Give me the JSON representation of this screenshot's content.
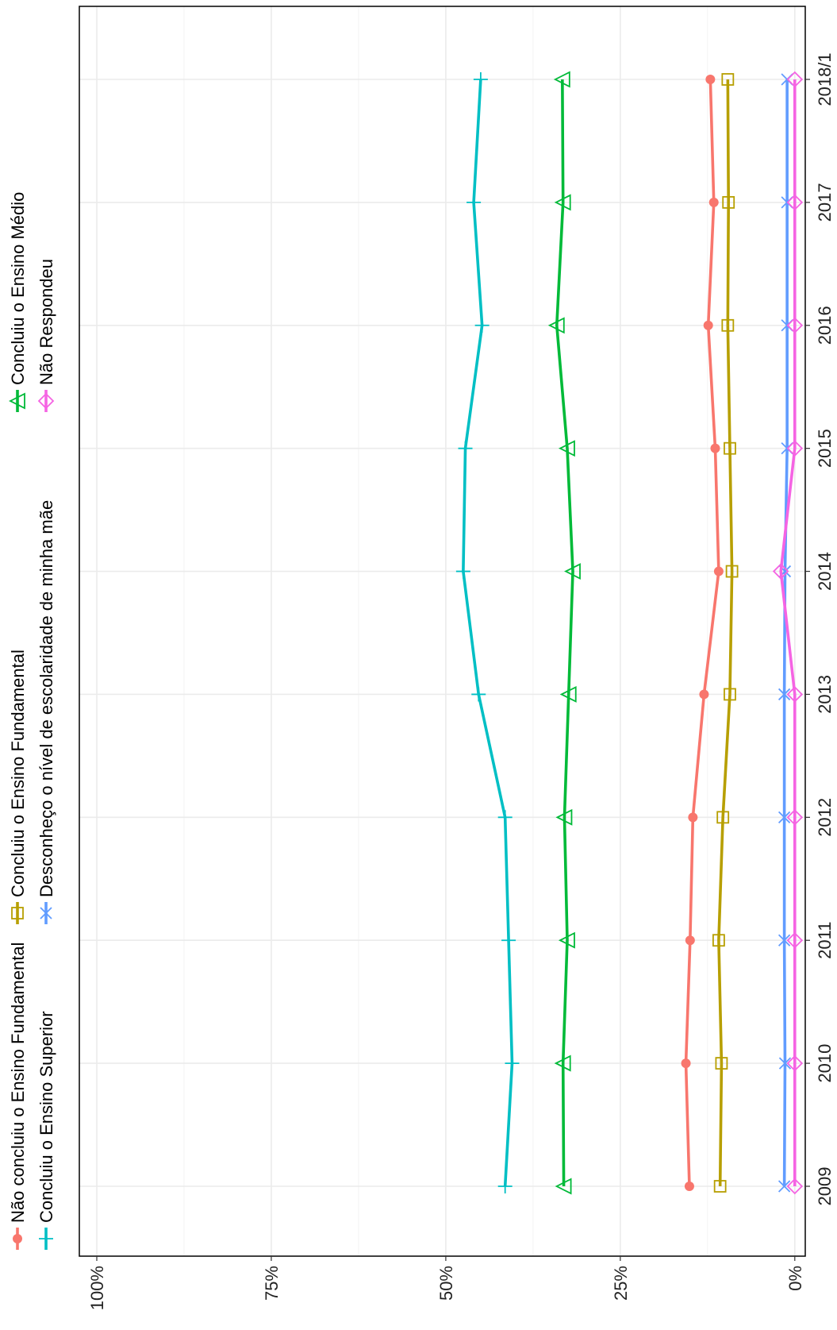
{
  "chart_data": {
    "type": "line",
    "orientation": "rotated-90-ccw",
    "x": [
      "2009",
      "2010",
      "2011",
      "2012",
      "2013",
      "2014",
      "2015",
      "2016",
      "2017",
      "2018/1"
    ],
    "y_ticks": [
      0,
      25,
      50,
      75,
      100
    ],
    "y_tick_labels": [
      "0%",
      "25%",
      "50%",
      "75%",
      "100%"
    ],
    "ylim": [
      -1.5,
      102.5
    ],
    "grid": true,
    "legend_position": "top",
    "series": [
      {
        "name": "Não concluiu o Ensino Fundamental",
        "color": "#F8766D",
        "marker": "circle",
        "values": [
          15.1,
          15.6,
          15.0,
          14.6,
          13.0,
          10.9,
          11.4,
          12.4,
          11.6,
          12.1
        ]
      },
      {
        "name": "Concluiu o Ensino Fundamental",
        "color": "#B79F00",
        "marker": "square",
        "values": [
          10.7,
          10.5,
          10.9,
          10.3,
          9.3,
          9.0,
          9.3,
          9.6,
          9.5,
          9.6
        ]
      },
      {
        "name": "Concluiu o Ensino Médio",
        "color": "#00BA38",
        "marker": "triangle",
        "values": [
          33.1,
          33.2,
          32.6,
          33.0,
          32.4,
          31.8,
          32.6,
          34.1,
          33.2,
          33.3
        ]
      },
      {
        "name": "Concluiu o Ensino Superior",
        "color": "#00BFC4",
        "marker": "plus",
        "values": [
          41.5,
          40.5,
          41.0,
          41.5,
          45.3,
          47.5,
          47.2,
          44.8,
          46.0,
          45.0
        ]
      },
      {
        "name": "Desconheço o nível de escolaridade de minha mãe",
        "color": "#619CFF",
        "marker": "x",
        "values": [
          1.5,
          1.4,
          1.5,
          1.5,
          1.5,
          1.4,
          1.1,
          1.1,
          1.1,
          1.1
        ]
      },
      {
        "name": "Não Respondeu",
        "color": "#F564E3",
        "marker": "diamond",
        "values": [
          0.0,
          0.0,
          0.0,
          0.0,
          0.0,
          2.0,
          0.0,
          0.0,
          0.0,
          0.0
        ]
      }
    ]
  }
}
